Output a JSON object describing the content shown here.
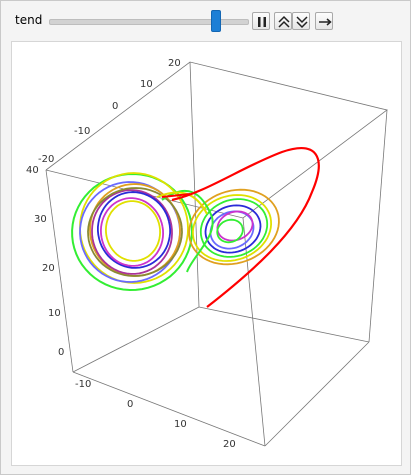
{
  "controls": {
    "label": "tend",
    "slider_value_fraction": 0.845,
    "buttons": [
      {
        "name": "pause-button",
        "icon": "pause-icon"
      },
      {
        "name": "speed-up-button",
        "icon": "double-chevron-up-icon"
      },
      {
        "name": "speed-down-button",
        "icon": "double-chevron-down-icon"
      },
      {
        "name": "direction-button",
        "icon": "right-arrow-icon"
      }
    ]
  },
  "plot": {
    "type": "3d-curve",
    "description_axes": {
      "x_ticks": [
        "-10",
        "0",
        "10",
        "20"
      ],
      "y_ticks": [
        "20",
        "10",
        "0",
        "-10",
        "-20"
      ],
      "z_ticks": [
        "40",
        "30",
        "20",
        "10",
        "0"
      ]
    },
    "series_colors": [
      "#ff0000",
      "#2a2ad8",
      "#e0e000",
      "#cc33cc",
      "#33ee33",
      "#6a6aff",
      "#e0a020",
      "#aa3399",
      "#8a8a33"
    ]
  },
  "colors": {
    "accent": "#1d7fd6",
    "box_edge": "#777777"
  }
}
